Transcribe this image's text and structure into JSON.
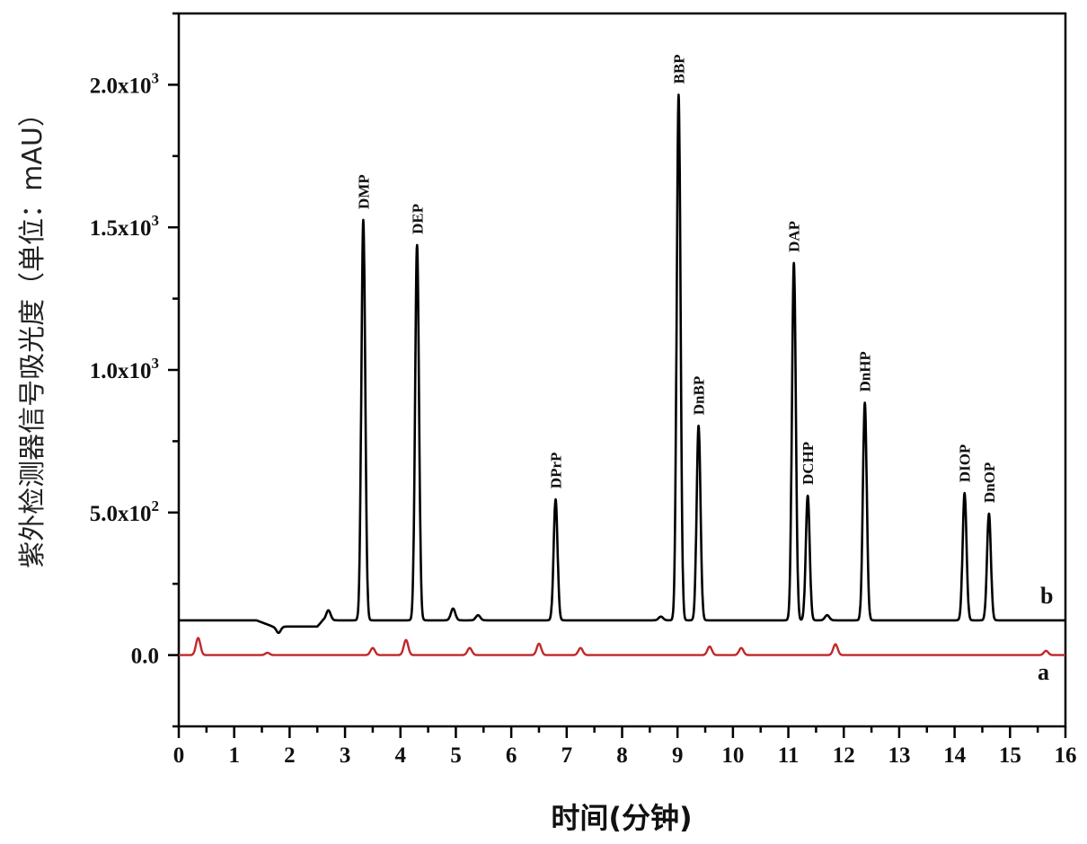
{
  "chart_data": {
    "type": "line",
    "title": "",
    "xlabel": "时间(分钟)",
    "ylabel": "紫外检测器信号吸光度（单位：mAU）",
    "xlim": [
      0,
      16
    ],
    "ylim": [
      -250,
      2250
    ],
    "x_ticks": [
      "0",
      "1",
      "2",
      "3",
      "4",
      "5",
      "6",
      "7",
      "8",
      "9",
      "10",
      "11",
      "12",
      "13",
      "14",
      "15",
      "16"
    ],
    "y_ticks": [
      {
        "value": 0,
        "label": "0.0"
      },
      {
        "value": 500,
        "label": "5.0x10²"
      },
      {
        "value": 1000,
        "label": "1.0x10³"
      },
      {
        "value": 1500,
        "label": "1.5x10³"
      },
      {
        "value": 2000,
        "label": "2.0x10³"
      }
    ],
    "grid": false,
    "series": [
      {
        "name": "b",
        "color": "#000000",
        "baseline": 122,
        "peaks": [
          {
            "t": 1.8,
            "height": 100,
            "label": ""
          },
          {
            "t": 2.7,
            "height": 157,
            "label": ""
          },
          {
            "t": 3.33,
            "height": 1526,
            "label": "DMP"
          },
          {
            "t": 4.3,
            "height": 1438,
            "label": "DEP"
          },
          {
            "t": 4.95,
            "height": 163,
            "label": ""
          },
          {
            "t": 5.4,
            "height": 140,
            "label": ""
          },
          {
            "t": 6.8,
            "height": 546,
            "label": "DPrP"
          },
          {
            "t": 8.7,
            "height": 135,
            "label": ""
          },
          {
            "t": 9.02,
            "height": 1965,
            "label": "BBP"
          },
          {
            "t": 9.38,
            "height": 804,
            "label": "DnBP"
          },
          {
            "t": 11.1,
            "height": 1375,
            "label": "DAP"
          },
          {
            "t": 11.35,
            "height": 559,
            "label": "DCHP"
          },
          {
            "t": 11.7,
            "height": 140,
            "label": ""
          },
          {
            "t": 12.38,
            "height": 885,
            "label": "DnHP"
          },
          {
            "t": 14.18,
            "height": 568,
            "label": "DIOP"
          },
          {
            "t": 14.62,
            "height": 496,
            "label": "DnOP"
          }
        ]
      },
      {
        "name": "a",
        "color": "#c0282a",
        "baseline": 0,
        "peaks": [
          {
            "t": 0.35,
            "height": 60
          },
          {
            "t": 1.6,
            "height": 8
          },
          {
            "t": 3.5,
            "height": 25
          },
          {
            "t": 4.1,
            "height": 53
          },
          {
            "t": 5.25,
            "height": 25
          },
          {
            "t": 6.5,
            "height": 40
          },
          {
            "t": 7.25,
            "height": 25
          },
          {
            "t": 9.58,
            "height": 30
          },
          {
            "t": 10.15,
            "height": 25
          },
          {
            "t": 11.85,
            "height": 38
          },
          {
            "t": 15.65,
            "height": 15
          }
        ]
      }
    ]
  }
}
